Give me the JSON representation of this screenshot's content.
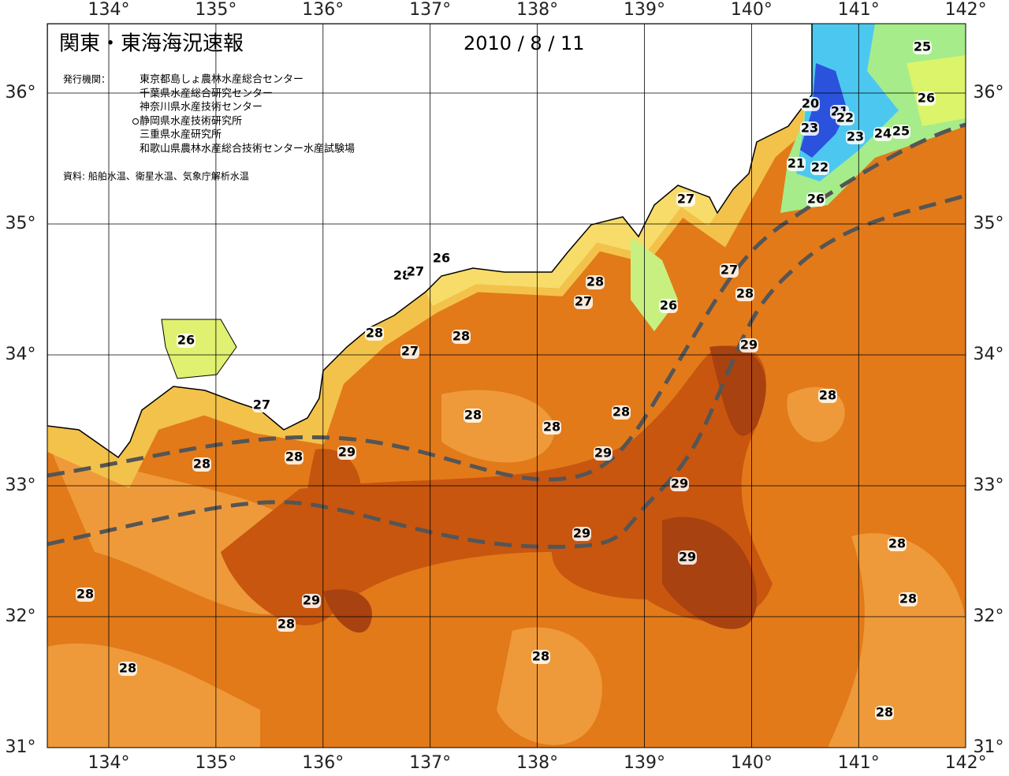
{
  "header": {
    "title": "関東・東海海況速報",
    "date": "2010 / 8 / 11",
    "agencies_label": "発行機関：",
    "agencies": [
      "東京都島しょ農林水産総合センター",
      "千葉県水産総合研究センター",
      "神奈川県水産技術センター",
      "静岡県水産技術研究所",
      "三重県水産研究所",
      "和歌山県農林水産総合技術センター水産試験場"
    ],
    "source": "資料: 船舶水温、衛星水温、気象庁解析水温"
  },
  "map": {
    "lon_ticks": [
      {
        "value": 134,
        "label": "134°"
      },
      {
        "value": 135,
        "label": "135°"
      },
      {
        "value": 136,
        "label": "136°"
      },
      {
        "value": 137,
        "label": "137°"
      },
      {
        "value": 138,
        "label": "138°"
      },
      {
        "value": 139,
        "label": "139°"
      },
      {
        "value": 140,
        "label": "140°"
      },
      {
        "value": 141,
        "label": "141°"
      },
      {
        "value": 142,
        "label": "142°"
      }
    ],
    "lat_ticks": [
      {
        "value": 36,
        "label": "36°"
      },
      {
        "value": 35,
        "label": "35°"
      },
      {
        "value": 34,
        "label": "34°"
      },
      {
        "value": 33,
        "label": "33°"
      },
      {
        "value": 32,
        "label": "32°"
      },
      {
        "value": 31,
        "label": "31°"
      }
    ],
    "contour_labels": [
      25,
      26,
      20,
      21,
      22,
      23,
      23,
      24,
      25,
      21,
      22,
      26,
      27,
      26,
      28,
      27,
      28,
      27,
      27,
      28,
      26,
      29,
      28,
      28,
      27,
      26,
      27,
      28,
      28,
      28,
      28,
      29,
      28,
      28,
      29,
      29,
      29,
      28,
      29,
      28,
      29,
      28,
      28,
      28,
      28,
      28
    ]
  }
}
